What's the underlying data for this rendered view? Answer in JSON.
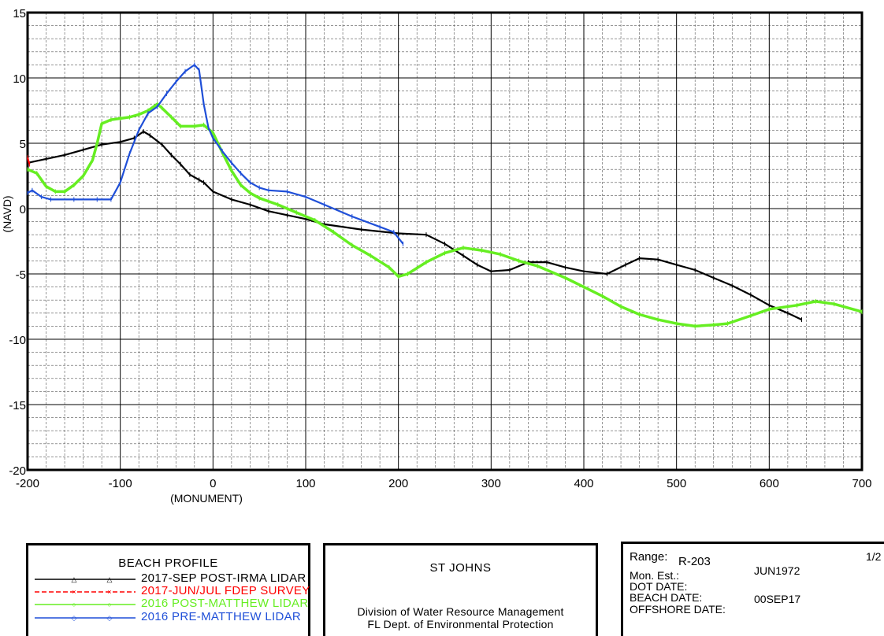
{
  "chart_data": {
    "type": "line",
    "xlabel": "(MONUMENT)",
    "ylabel": "(NAVD)",
    "xlim": [
      -200,
      700
    ],
    "ylim": [
      -20,
      15
    ],
    "xticks": [
      -200,
      -100,
      0,
      100,
      200,
      300,
      400,
      500,
      600,
      700
    ],
    "yticks": [
      -20,
      -15,
      -10,
      -5,
      0,
      5,
      10,
      15
    ],
    "grid": true,
    "series": [
      {
        "name": "2017-SEP POST-IRMA LIDAR",
        "color": "#000000",
        "marker": "triangle",
        "points": [
          [
            -200,
            3.5
          ],
          [
            -180,
            3.8
          ],
          [
            -160,
            4.1
          ],
          [
            -140,
            4.5
          ],
          [
            -120,
            4.9
          ],
          [
            -100,
            5.1
          ],
          [
            -85,
            5.4
          ],
          [
            -75,
            5.9
          ],
          [
            -68,
            5.6
          ],
          [
            -55,
            4.9
          ],
          [
            -45,
            4.1
          ],
          [
            -35,
            3.4
          ],
          [
            -25,
            2.6
          ],
          [
            -15,
            2.2
          ],
          [
            -10,
            2.0
          ],
          [
            0,
            1.3
          ],
          [
            20,
            0.7
          ],
          [
            40,
            0.3
          ],
          [
            60,
            -0.2
          ],
          [
            80,
            -0.5
          ],
          [
            100,
            -0.8
          ],
          [
            120,
            -1.2
          ],
          [
            160,
            -1.6
          ],
          [
            200,
            -1.9
          ],
          [
            230,
            -2.0
          ],
          [
            250,
            -2.7
          ],
          [
            270,
            -3.6
          ],
          [
            285,
            -4.3
          ],
          [
            300,
            -4.8
          ],
          [
            320,
            -4.7
          ],
          [
            340,
            -4.1
          ],
          [
            360,
            -4.1
          ],
          [
            380,
            -4.5
          ],
          [
            400,
            -4.8
          ],
          [
            425,
            -5.0
          ],
          [
            445,
            -4.3
          ],
          [
            460,
            -3.8
          ],
          [
            480,
            -3.9
          ],
          [
            500,
            -4.3
          ],
          [
            520,
            -4.7
          ],
          [
            540,
            -5.3
          ],
          [
            560,
            -5.9
          ],
          [
            580,
            -6.6
          ],
          [
            600,
            -7.4
          ],
          [
            620,
            -8.0
          ],
          [
            635,
            -8.5
          ]
        ]
      },
      {
        "name": "2017-JUN/JUL FDEP SURVEY",
        "color": "#ff0000",
        "marker": "x",
        "points": [
          [
            -200,
            3.9
          ],
          [
            -198,
            3.4
          ]
        ]
      },
      {
        "name": "2016 POST-MATTHEW LIDAR",
        "color": "#66ee22",
        "marker": "circle",
        "points": [
          [
            -200,
            3.0
          ],
          [
            -190,
            2.7
          ],
          [
            -180,
            1.7
          ],
          [
            -170,
            1.3
          ],
          [
            -160,
            1.3
          ],
          [
            -150,
            1.8
          ],
          [
            -140,
            2.5
          ],
          [
            -130,
            3.7
          ],
          [
            -125,
            5.0
          ],
          [
            -120,
            6.5
          ],
          [
            -110,
            6.8
          ],
          [
            -100,
            6.9
          ],
          [
            -90,
            7.0
          ],
          [
            -80,
            7.2
          ],
          [
            -70,
            7.5
          ],
          [
            -60,
            8.0
          ],
          [
            -55,
            7.7
          ],
          [
            -45,
            7.0
          ],
          [
            -35,
            6.3
          ],
          [
            -20,
            6.3
          ],
          [
            -10,
            6.4
          ],
          [
            0,
            5.8
          ],
          [
            10,
            4.3
          ],
          [
            20,
            2.9
          ],
          [
            30,
            1.8
          ],
          [
            40,
            1.2
          ],
          [
            50,
            0.8
          ],
          [
            70,
            0.3
          ],
          [
            90,
            -0.3
          ],
          [
            110,
            -0.9
          ],
          [
            130,
            -1.8
          ],
          [
            150,
            -2.8
          ],
          [
            170,
            -3.6
          ],
          [
            190,
            -4.5
          ],
          [
            200,
            -5.2
          ],
          [
            210,
            -5.0
          ],
          [
            230,
            -4.1
          ],
          [
            250,
            -3.4
          ],
          [
            270,
            -3.0
          ],
          [
            290,
            -3.2
          ],
          [
            310,
            -3.5
          ],
          [
            330,
            -4.0
          ],
          [
            350,
            -4.4
          ],
          [
            380,
            -5.3
          ],
          [
            400,
            -6.0
          ],
          [
            420,
            -6.7
          ],
          [
            440,
            -7.5
          ],
          [
            460,
            -8.1
          ],
          [
            480,
            -8.5
          ],
          [
            500,
            -8.8
          ],
          [
            520,
            -9.0
          ],
          [
            540,
            -8.9
          ],
          [
            555,
            -8.8
          ],
          [
            580,
            -8.2
          ],
          [
            600,
            -7.7
          ],
          [
            630,
            -7.4
          ],
          [
            650,
            -7.1
          ],
          [
            670,
            -7.3
          ],
          [
            700,
            -7.9
          ]
        ]
      },
      {
        "name": "2016 PRE-MATTHEW LIDAR",
        "color": "#1f4fd8",
        "marker": "diamond",
        "points": [
          [
            -200,
            1.2
          ],
          [
            -195,
            1.4
          ],
          [
            -185,
            0.9
          ],
          [
            -175,
            0.7
          ],
          [
            -150,
            0.7
          ],
          [
            -125,
            0.7
          ],
          [
            -110,
            0.7
          ],
          [
            -100,
            2.0
          ],
          [
            -90,
            4.2
          ],
          [
            -80,
            6.0
          ],
          [
            -70,
            7.3
          ],
          [
            -60,
            7.8
          ],
          [
            -50,
            8.8
          ],
          [
            -40,
            9.7
          ],
          [
            -30,
            10.5
          ],
          [
            -20,
            11.0
          ],
          [
            -15,
            10.6
          ],
          [
            -10,
            8.0
          ],
          [
            -5,
            6.2
          ],
          [
            0,
            5.4
          ],
          [
            10,
            4.4
          ],
          [
            20,
            3.5
          ],
          [
            30,
            2.7
          ],
          [
            40,
            2.0
          ],
          [
            50,
            1.6
          ],
          [
            60,
            1.4
          ],
          [
            80,
            1.3
          ],
          [
            100,
            0.9
          ],
          [
            120,
            0.3
          ],
          [
            150,
            -0.6
          ],
          [
            180,
            -1.4
          ],
          [
            195,
            -1.8
          ],
          [
            205,
            -2.7
          ]
        ]
      }
    ]
  },
  "legend": {
    "title": "BEACH PROFILE"
  },
  "center_box": {
    "title": "ST JOHNS",
    "line1": "Division of Water Resource Management",
    "line2": "FL Dept. of Environmental Protection"
  },
  "info_box": {
    "range_label": "Range:",
    "range_value": "R-203",
    "page": "1/2",
    "mon_est_label": "Mon. Est.:",
    "mon_est_value": "JUN1972",
    "dot_date_label": "DOT DATE:",
    "beach_date_label": "BEACH DATE:",
    "beach_date_value": "00SEP17",
    "offshore_date_label": "OFFSHORE DATE:"
  }
}
